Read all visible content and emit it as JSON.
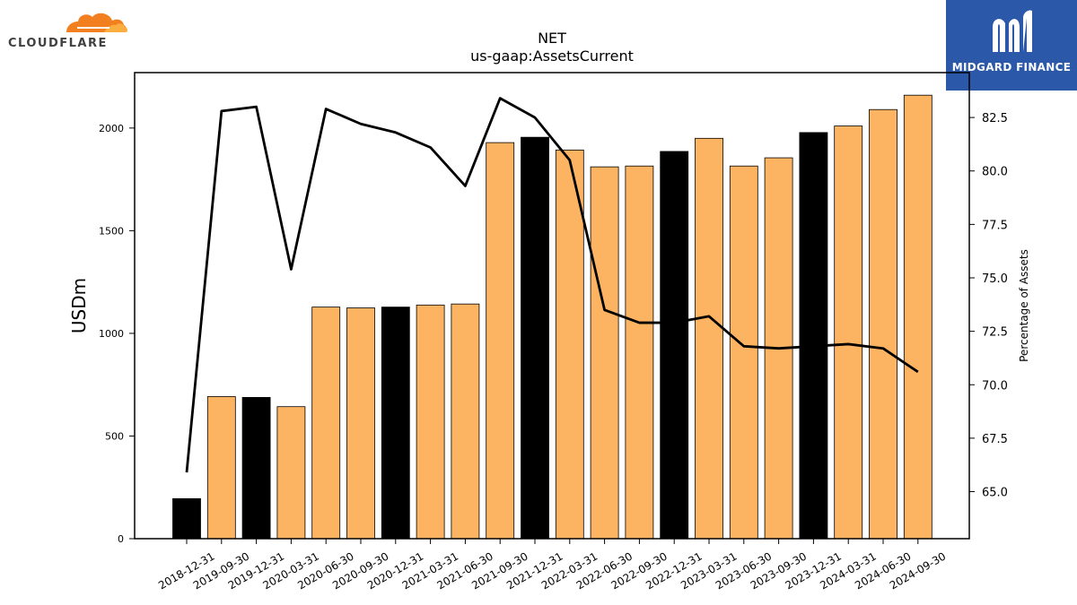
{
  "logos": {
    "left": {
      "text": "CLOUDFLARE",
      "colors": {
        "cloud_dark": "#f38020",
        "cloud_light": "#faae40"
      }
    },
    "right": {
      "text": "MIDGARD FINANCE",
      "background": "#2b58a8"
    }
  },
  "chart_data": {
    "type": "bar",
    "title": "NET",
    "subtitle": "us-gaap:AssetsCurrent",
    "ylabel": "USDm",
    "y2label": "Percentage of Assets",
    "categories": [
      "2018-12-31",
      "2019-09-30",
      "2019-12-31",
      "2020-03-31",
      "2020-06-30",
      "2020-09-30",
      "2020-12-31",
      "2021-03-31",
      "2021-06-30",
      "2021-09-30",
      "2021-12-31",
      "2022-03-31",
      "2022-06-30",
      "2022-09-30",
      "2022-12-31",
      "2023-03-31",
      "2023-06-30",
      "2023-09-30",
      "2023-12-31",
      "2024-03-31",
      "2024-06-30",
      "2024-09-30"
    ],
    "series": [
      {
        "type": "bar",
        "values": [
          195,
          692,
          688,
          643,
          1128,
          1124,
          1128,
          1138,
          1143,
          1929,
          1955,
          1893,
          1811,
          1815,
          1886,
          1950,
          1815,
          1855,
          1978,
          2010,
          2090,
          2160
        ],
        "colors": [
          "#000000",
          "#fdb462",
          "#000000",
          "#fdb462",
          "#fdb462",
          "#fdb462",
          "#000000",
          "#fdb462",
          "#fdb462",
          "#fdb462",
          "#000000",
          "#fdb462",
          "#fdb462",
          "#fdb462",
          "#000000",
          "#fdb462",
          "#fdb462",
          "#fdb462",
          "#000000",
          "#fdb462",
          "#fdb462",
          "#fdb462"
        ]
      },
      {
        "type": "line",
        "axis": "right",
        "color": "#000000",
        "values": [
          65.9,
          82.8,
          83.0,
          75.4,
          82.9,
          82.2,
          81.8,
          81.1,
          79.3,
          83.4,
          82.5,
          80.5,
          73.5,
          72.9,
          72.9,
          73.2,
          71.8,
          71.7,
          71.8,
          71.9,
          71.7,
          70.6
        ]
      }
    ],
    "ylim": [
      0,
      2270
    ],
    "yticks": [
      0,
      500,
      1000,
      1500,
      2000
    ],
    "y2lim": [
      62.8,
      84.6
    ],
    "y2ticks": [
      "65.0",
      "67.5",
      "70.0",
      "72.5",
      "75.0",
      "77.5",
      "80.0",
      "82.5"
    ],
    "grid": false,
    "legend": "none"
  }
}
